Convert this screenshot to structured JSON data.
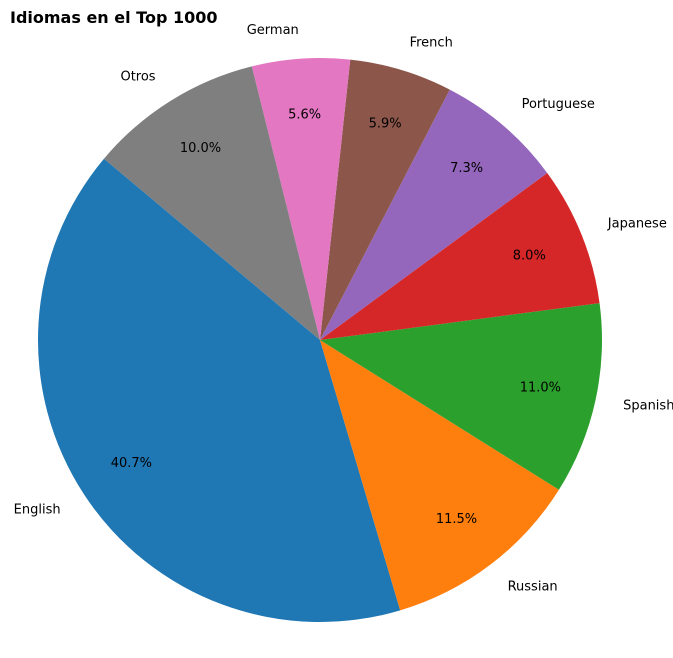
{
  "chart_data": {
    "type": "pie",
    "title": "Idiomas en el Top 1000",
    "start_angle_deg": 140,
    "direction": "counterclockwise",
    "slices": [
      {
        "label": "English",
        "value": 40.7,
        "pct_label": "40.7%",
        "color": "#1f77b4"
      },
      {
        "label": "Russian",
        "value": 11.5,
        "pct_label": "11.5%",
        "color": "#ff7f0e"
      },
      {
        "label": "Spanish",
        "value": 11.0,
        "pct_label": "11.0%",
        "color": "#2ca02c"
      },
      {
        "label": "Japanese",
        "value": 8.0,
        "pct_label": "8.0%",
        "color": "#d62728"
      },
      {
        "label": "Portuguese",
        "value": 7.3,
        "pct_label": "7.3%",
        "color": "#9467bd"
      },
      {
        "label": "French",
        "value": 5.9,
        "pct_label": "5.9%",
        "color": "#8c564b"
      },
      {
        "label": "German",
        "value": 5.6,
        "pct_label": "5.6%",
        "color": "#e377c2"
      },
      {
        "label": "Otros",
        "value": 10.0,
        "pct_label": "10.0%",
        "color": "#7f7f7f"
      }
    ]
  }
}
